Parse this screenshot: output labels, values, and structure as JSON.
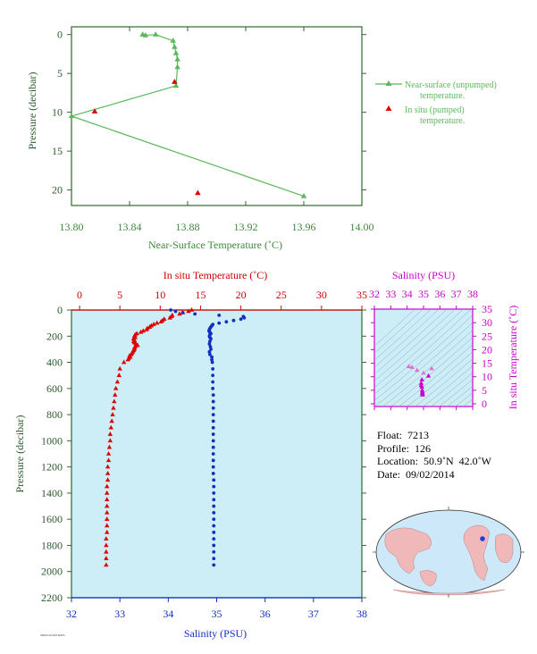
{
  "chart_data": [
    {
      "type": "scatter",
      "xlabel": "Near-Surface Temperature (˚C)",
      "ylabel": "Pressure (decibar)",
      "xlim": [
        13.8,
        14.0
      ],
      "ylim": [
        22,
        -1
      ],
      "xticks": [
        "13.80",
        "13.84",
        "13.88",
        "13.92",
        "13.96",
        "14.00"
      ],
      "yticks": [
        "0",
        "5",
        "10",
        "15",
        "20"
      ],
      "series": [
        {
          "name": "Near-surface (unpumped) temperature.",
          "color": "#5cb85c",
          "marker": "triangle-line",
          "x": [
            13.849,
            13.851,
            13.858,
            13.87,
            13.871,
            13.872,
            13.873,
            13.873,
            13.872,
            13.8,
            13.96
          ],
          "y": [
            0.0,
            0.1,
            0.0,
            0.8,
            1.6,
            2.4,
            3.2,
            4.2,
            6.6,
            10.5,
            20.8
          ]
        },
        {
          "name": "In situ (pumped) temperature.",
          "color": "#dd0000",
          "marker": "triangle",
          "x": [
            13.871,
            13.816,
            13.887
          ],
          "y": [
            6.1,
            9.9,
            20.4
          ]
        }
      ]
    },
    {
      "type": "scatter",
      "ylabel": "Pressure (decibar)",
      "top_axis_label": "In situ Temperature (˚C)",
      "bottom_axis_label": "Salinity (PSU)",
      "temp_lim": [
        -1,
        35
      ],
      "sal_lim": [
        32,
        38
      ],
      "ylim": [
        2200,
        0
      ],
      "temp_ticks": [
        "0",
        "5",
        "10",
        "15",
        "20",
        "25",
        "30",
        "35"
      ],
      "sal_ticks": [
        "32",
        "33",
        "34",
        "35",
        "36",
        "37",
        "38"
      ],
      "yticks": [
        "0",
        "200",
        "400",
        "600",
        "800",
        "1000",
        "1200",
        "1400",
        "1600",
        "1800",
        "2000",
        "2200"
      ],
      "temperature": {
        "color": "#dd0000",
        "p": [
          0,
          10,
          20,
          30,
          40,
          50,
          60,
          70,
          80,
          90,
          100,
          110,
          120,
          130,
          140,
          150,
          160,
          170,
          180,
          190,
          200,
          210,
          220,
          230,
          240,
          250,
          260,
          270,
          280,
          290,
          300,
          310,
          320,
          330,
          340,
          350,
          360,
          370,
          380,
          400,
          450,
          500,
          550,
          600,
          650,
          700,
          750,
          800,
          850,
          900,
          950,
          1000,
          1050,
          1100,
          1150,
          1200,
          1250,
          1300,
          1350,
          1400,
          1450,
          1500,
          1550,
          1600,
          1650,
          1700,
          1750,
          1800,
          1850,
          1900,
          1950
        ],
        "t": [
          13.9,
          13.5,
          12.8,
          12.4,
          11.5,
          11.4,
          11.2,
          10.5,
          10.3,
          10.1,
          9.6,
          9.2,
          8.9,
          8.7,
          8.4,
          8.3,
          7.9,
          7.6,
          7.1,
          6.9,
          6.8,
          6.9,
          6.7,
          6.8,
          6.7,
          6.8,
          7.0,
          7.2,
          6.9,
          6.8,
          6.8,
          6.7,
          6.6,
          6.5,
          6.4,
          6.2,
          6.3,
          6.1,
          6.0,
          5.5,
          5.0,
          4.9,
          4.7,
          4.5,
          4.4,
          4.3,
          4.2,
          4.1,
          4.0,
          3.9,
          3.8,
          3.8,
          3.7,
          3.6,
          3.6,
          3.5,
          3.5,
          3.5,
          3.4,
          3.4,
          3.4,
          3.4,
          3.4,
          3.4,
          3.4,
          3.4,
          3.3,
          3.3,
          3.3,
          3.3,
          3.3
        ]
      },
      "salinity": {
        "color": "#1030c0",
        "p": [
          0,
          10,
          20,
          30,
          40,
          50,
          60,
          70,
          80,
          90,
          100,
          110,
          120,
          130,
          140,
          150,
          160,
          170,
          180,
          190,
          200,
          210,
          220,
          240,
          260,
          280,
          300,
          320,
          340,
          360,
          380,
          400,
          450,
          500,
          550,
          600,
          650,
          700,
          750,
          800,
          850,
          900,
          950,
          1000,
          1050,
          1100,
          1150,
          1200,
          1250,
          1300,
          1350,
          1400,
          1450,
          1500,
          1550,
          1600,
          1650,
          1700,
          1750,
          1800,
          1850,
          1900,
          1950
        ],
        "s": [
          34.05,
          34.15,
          34.3,
          34.55,
          35.05,
          35.55,
          35.57,
          35.5,
          35.35,
          35.2,
          35.05,
          34.92,
          34.9,
          34.88,
          34.86,
          34.85,
          34.84,
          34.86,
          34.88,
          34.86,
          34.85,
          34.86,
          34.88,
          34.86,
          34.85,
          34.87,
          34.88,
          34.85,
          34.86,
          34.9,
          34.9,
          34.91,
          34.92,
          34.92,
          34.92,
          34.92,
          34.93,
          34.93,
          34.93,
          34.93,
          34.93,
          34.93,
          34.93,
          34.93,
          34.93,
          34.93,
          34.93,
          34.93,
          34.93,
          34.94,
          34.94,
          34.94,
          34.94,
          34.94,
          34.94,
          34.94,
          34.94,
          34.94,
          34.94,
          34.94,
          34.94,
          34.94,
          34.94
        ]
      }
    },
    {
      "type": "scatter",
      "top_axis_label": "Salinity (PSU)",
      "ylabel": "In situ Temperature (˚C)",
      "color": "#cc00cc",
      "sal_lim": [
        32,
        38
      ],
      "temp_lim": [
        -1,
        35
      ],
      "sal_ticks": [
        "32",
        "33",
        "34",
        "35",
        "36",
        "37",
        "38"
      ],
      "temp_ticks": [
        "0",
        "5",
        "10",
        "15",
        "20",
        "25",
        "30",
        "35"
      ],
      "s": [
        34.1,
        34.3,
        34.6,
        35.0,
        35.5,
        35.3,
        34.9,
        34.86,
        34.86,
        34.9,
        34.92,
        34.93,
        34.93,
        34.94,
        34.94
      ],
      "t": [
        13.8,
        13.5,
        12.4,
        11.4,
        13.0,
        10.3,
        8.9,
        7.6,
        6.8,
        6.2,
        5.0,
        4.4,
        3.9,
        3.5,
        3.3
      ]
    }
  ],
  "info": {
    "float": "Float:  7213",
    "profile": "Profile:  126",
    "location": "Location:  50.9˚N  42.0˚W",
    "date": "Date:  09/02/2014"
  },
  "map": {
    "marker_color": "#1a3fd6",
    "land_color": "#f0b8b8",
    "ocean_color": "#cde8f8"
  },
  "credit": "ARGO FLOAT DATA"
}
